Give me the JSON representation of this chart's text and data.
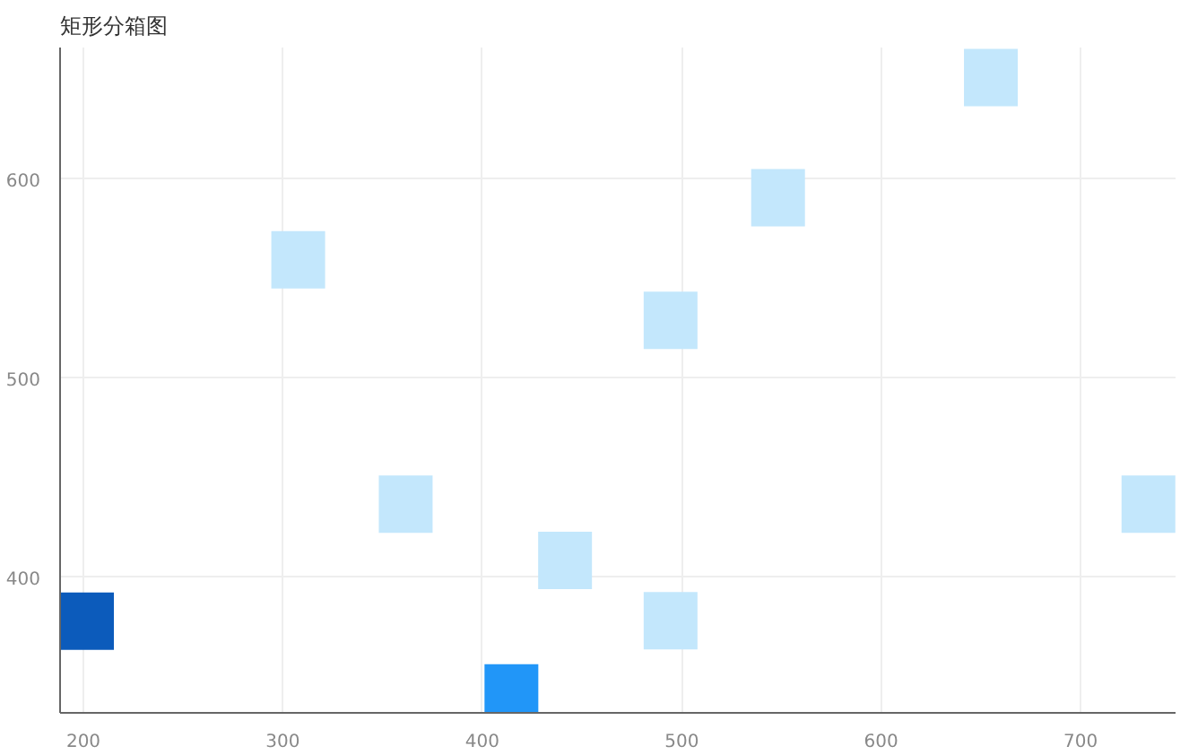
{
  "chart_data": {
    "type": "scatter",
    "title": "矩形分箱图",
    "marker": "square",
    "grid": true,
    "x": [
      201.8,
      307.7,
      361.6,
      414.6,
      441.5,
      494.4,
      494.4,
      548.3,
      655,
      734
    ],
    "values": [
      378,
      559.4,
      436.8,
      342,
      408.5,
      529,
      378.3,
      590.6,
      650.9,
      436.8
    ],
    "colors": [
      "#0c5bbb",
      "#c3e7fc",
      "#c3e7fc",
      "#2196f8",
      "#c3e7fc",
      "#c3e7fc",
      "#c3e7fc",
      "#c3e7fc",
      "#c3e7fc",
      "#c3e7fc"
    ],
    "xlim": [
      188.3,
      747.6
    ],
    "ylim": [
      332,
      666
    ],
    "xticks": [
      200,
      300,
      400,
      500,
      600,
      700
    ],
    "yticks": [
      400,
      500,
      600
    ]
  }
}
